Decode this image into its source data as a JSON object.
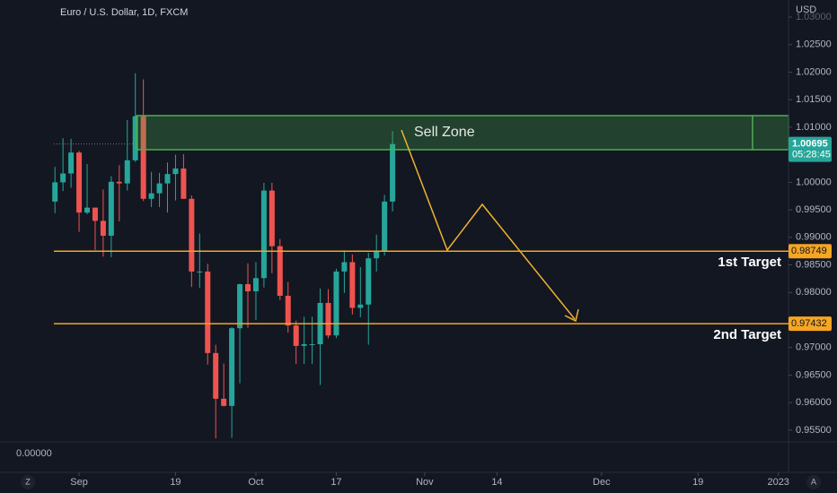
{
  "chart_data": {
    "type": "candlestick",
    "title": "Euro / U.S. Dollar, 1D, FXCM",
    "currency": "USD",
    "up_color": "#26a69a",
    "down_color": "#ef5350",
    "open": [
      0.9965,
      1.0,
      1.0016,
      1.0054,
      0.9945,
      0.9954,
      0.993,
      0.9903,
      1.0001,
      0.9998,
      1.004,
      1.012,
      0.997,
      0.998,
      0.9998,
      1.0015,
      1.0025,
      0.997,
      0.9838,
      0.9838,
      0.969,
      0.9607,
      0.9594,
      0.9735,
      0.9815,
      0.9802,
      0.9826,
      0.9985,
      0.9884,
      0.9794,
      0.974,
      0.9703,
      0.9706,
      0.9706,
      0.9781,
      0.9722,
      0.9838,
      0.9855,
      0.9772,
      0.9778,
      0.9862,
      0.9876,
      0.9965
    ],
    "high": [
      1.0028,
      1.008,
      1.0079,
      1.0057,
      1.0033,
      0.9954,
      0.9987,
      1.0011,
      1.0031,
      1.0113,
      1.0198,
      1.0187,
      1.0019,
      1.0017,
      1.0036,
      1.005,
      1.0051,
      0.9976,
      0.9907,
      0.9852,
      0.9705,
      0.9671,
      0.9737,
      0.9816,
      0.9853,
      0.9855,
      0.9999,
      0.9999,
      0.9897,
      0.9819,
      0.9749,
      0.9756,
      0.9756,
      0.9807,
      0.9806,
      0.9843,
      0.9875,
      0.9869,
      0.9846,
      0.9872,
      0.9905,
      0.9977,
      1.0093
    ],
    "low": [
      0.9944,
      0.9984,
      0.999,
      0.991,
      0.9942,
      0.9877,
      0.9865,
      0.9864,
      0.9929,
      0.9985,
      1.0037,
      0.9966,
      0.9955,
      0.9955,
      0.9945,
      0.9967,
      0.997,
      0.981,
      0.9808,
      0.9669,
      0.9535,
      0.9593,
      0.9536,
      0.9635,
      0.9736,
      0.975,
      0.9809,
      0.9835,
      0.9786,
      0.9727,
      0.967,
      0.967,
      0.967,
      0.9632,
      0.9717,
      0.9717,
      0.9799,
      0.976,
      0.9755,
      0.9705,
      0.9838,
      0.9867,
      0.9947
    ],
    "close": [
      1.0,
      1.0016,
      1.0054,
      0.9945,
      0.9954,
      0.993,
      0.9903,
      1.0001,
      0.9998,
      1.004,
      1.012,
      0.997,
      0.998,
      0.9998,
      1.0015,
      1.0025,
      0.997,
      0.9838,
      0.9838,
      0.969,
      0.9607,
      0.9594,
      0.9735,
      0.9815,
      0.9802,
      0.9826,
      0.9985,
      0.9884,
      0.9794,
      0.974,
      0.9703,
      0.9706,
      0.9706,
      0.9781,
      0.9722,
      0.9838,
      0.9855,
      0.9772,
      0.9778,
      0.9862,
      0.9876,
      0.9965,
      1.00695
    ],
    "ylim": [
      0.9527,
      1.0331
    ],
    "yticks": [
      {
        "value": 1.03,
        "label": "1.03000"
      },
      {
        "value": 1.025,
        "label": "1.02500"
      },
      {
        "value": 1.02,
        "label": "1.02000"
      },
      {
        "value": 1.015,
        "label": "1.01500"
      },
      {
        "value": 1.01,
        "label": "1.01000"
      },
      {
        "value": 1.0,
        "label": "1.00000"
      },
      {
        "value": 0.995,
        "label": "0.99500"
      },
      {
        "value": 0.99,
        "label": "0.99000"
      },
      {
        "value": 0.985,
        "label": "0.98500"
      },
      {
        "value": 0.98,
        "label": "0.98000"
      },
      {
        "value": 0.97,
        "label": "0.97000"
      },
      {
        "value": 0.965,
        "label": "0.96500"
      },
      {
        "value": 0.96,
        "label": "0.96000"
      },
      {
        "value": 0.955,
        "label": "0.95500"
      }
    ],
    "xticks": [
      {
        "value": 3,
        "label": "Sep"
      },
      {
        "value": 15,
        "label": "19"
      },
      {
        "value": 25,
        "label": "Oct"
      },
      {
        "value": 35,
        "label": "17"
      },
      {
        "value": 46,
        "label": "Nov"
      },
      {
        "value": 55,
        "label": "14"
      },
      {
        "value": 68,
        "label": "Dec"
      },
      {
        "value": 80,
        "label": "19"
      },
      {
        "value": 90,
        "label": "2023"
      }
    ],
    "last_price": 1.00695,
    "countdown": "05:28:45",
    "levels": [
      {
        "value": 0.98749,
        "text": "1st Target",
        "color": "#f5a623"
      },
      {
        "value": 0.97432,
        "text": "2nd Target",
        "color": "#f5a623"
      }
    ],
    "zone_label": "Sell Zone",
    "lower_pane_value": "0.00000",
    "scale_buttons": [
      "Z",
      "A"
    ]
  }
}
